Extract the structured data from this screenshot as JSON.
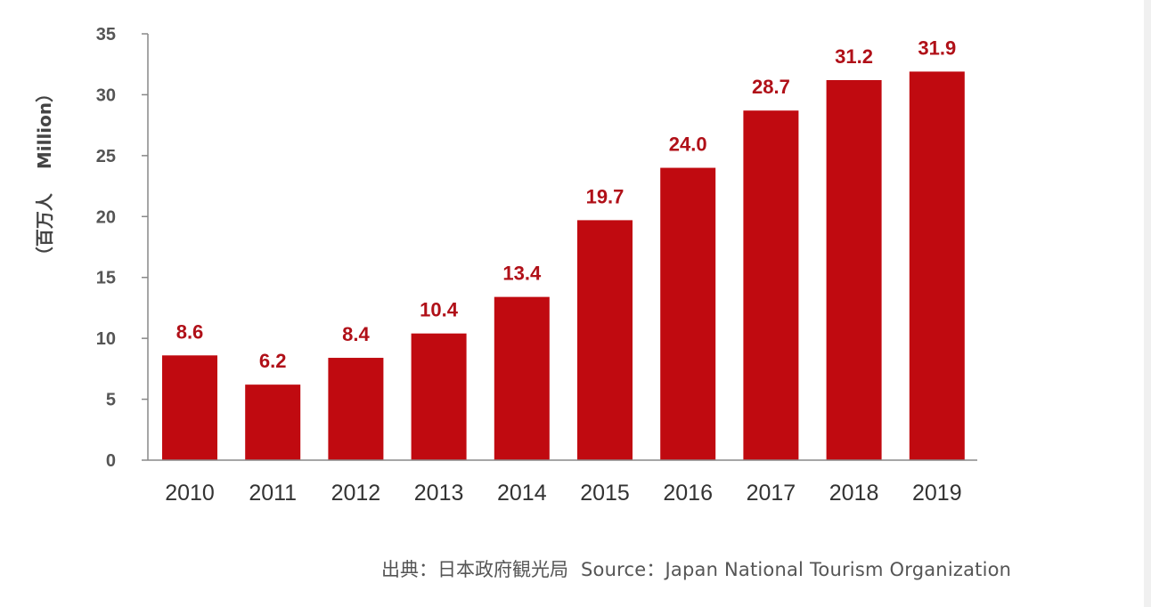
{
  "chart_data": {
    "type": "bar",
    "categories": [
      "2010",
      "2011",
      "2012",
      "2013",
      "2014",
      "2015",
      "2016",
      "2017",
      "2018",
      "2019"
    ],
    "values": [
      8.6,
      6.2,
      8.4,
      10.4,
      13.4,
      19.7,
      24.0,
      28.7,
      31.2,
      31.9
    ],
    "value_labels": [
      "8.6",
      "6.2",
      "8.4",
      "10.4",
      "13.4",
      "19.7",
      "24.0",
      "28.7",
      "31.2",
      "31.9"
    ],
    "ylabel": "（百万人　 Million）",
    "ylim": [
      0,
      35
    ],
    "yticks": [
      "0",
      "5",
      "10",
      "15",
      "20",
      "25",
      "30",
      "35"
    ],
    "grid": false,
    "legend": "none"
  },
  "source": {
    "ja": "出典：日本政府観光局",
    "en": "Source：Japan  National Tourism  Organization"
  },
  "colors": {
    "bar": "#c00a10",
    "value_label": "#b01018",
    "axis": "#888888",
    "tick_label": "#555555",
    "year_label": "#333333"
  }
}
